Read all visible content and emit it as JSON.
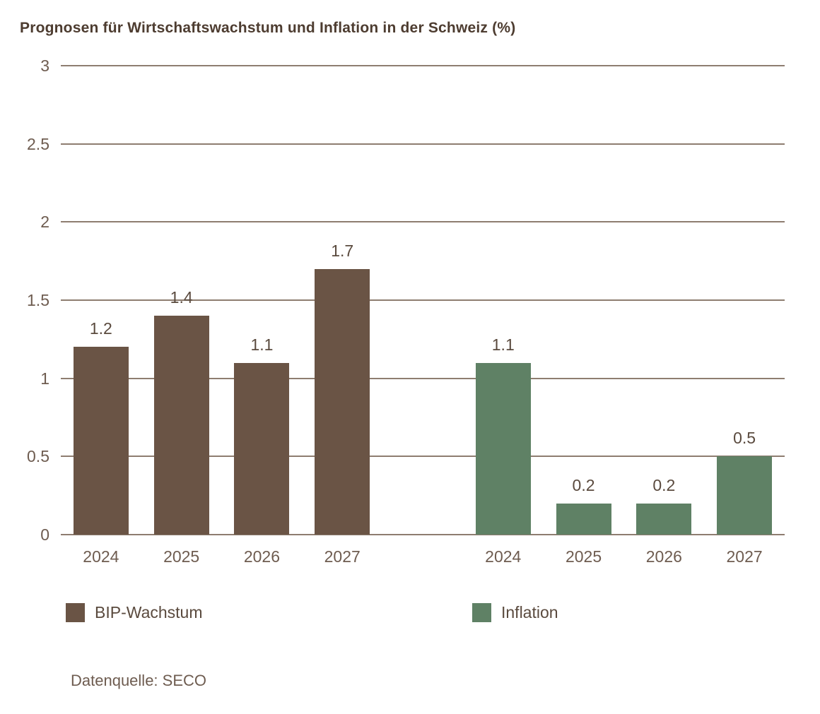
{
  "title": "Prognosen für Wirtschaftswachstum und Inflation in der Schweiz (%)",
  "source": "Datenquelle: SECO",
  "colors": {
    "background": "#FFFFFF",
    "bip_bar": "#6A5445",
    "inflation_bar": "#5F8165",
    "gridline": "#8E7D70",
    "title_text": "#4D3C30",
    "axis_text": "#6E5C50",
    "value_text": "#5A4A3E",
    "legend_text": "#5A4A3E"
  },
  "legend": {
    "items": [
      {
        "label": "BIP-Wachstum",
        "color": "#6A5445"
      },
      {
        "label": "Inflation",
        "color": "#5F8165"
      }
    ]
  },
  "chart_data": {
    "type": "bar",
    "title": "Prognosen für Wirtschaftswachstum und Inflation in der Schweiz (%)",
    "categories": [
      "2024",
      "2025",
      "2026",
      "2027"
    ],
    "series": [
      {
        "name": "BIP-Wachstum",
        "values": [
          1.2,
          1.4,
          1.1,
          1.7
        ],
        "color": "#6A5445"
      },
      {
        "name": "Inflation",
        "values": [
          1.1,
          0.2,
          0.2,
          0.5
        ],
        "color": "#5F8165"
      }
    ],
    "ylim": [
      0,
      3
    ],
    "yticks": [
      0,
      0.5,
      1,
      1.5,
      2,
      2.5,
      3
    ],
    "ytick_labels": [
      "0",
      "0.5",
      "1",
      "1.5",
      "2",
      "2.5",
      "3"
    ],
    "grid": true,
    "value_labels": true,
    "legend_position": "bottom",
    "xlabel": "",
    "ylabel": "",
    "source": "Datenquelle: SECO"
  }
}
